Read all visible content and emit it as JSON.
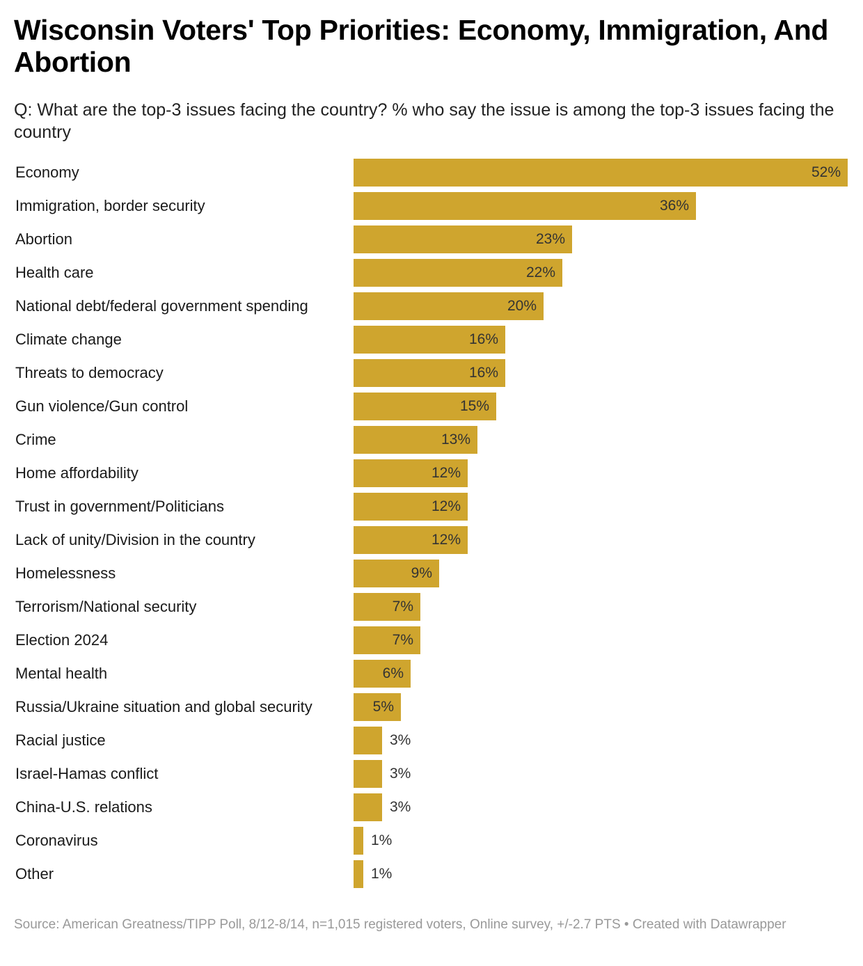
{
  "header": {
    "title": "Wisconsin Voters' Top Priorities: Economy, Immigration, And Abortion",
    "subtitle": "Q: What are the top-3 issues facing the country? % who say the issue is among the top-3 issues facing the country"
  },
  "footer": {
    "source": "Source: American Greatness/TIPP Poll, 8/12-8/14, n=1,015 registered voters, Online survey, +/-2.7 PTS • Created with Datawrapper"
  },
  "colors": {
    "bar": "#cfa52e",
    "label_inside": "#333333",
    "label_outside": "#333333"
  },
  "chart_data": {
    "type": "bar",
    "orientation": "horizontal",
    "title": "Wisconsin Voters' Top Priorities: Economy, Immigration, And Abortion",
    "xlabel": "",
    "ylabel": "",
    "value_suffix": "%",
    "xlim": [
      0,
      52
    ],
    "categories": [
      "Economy",
      "Immigration, border security",
      "Abortion",
      "Health care",
      "National debt/federal government spending",
      "Climate change",
      "Threats to democracy",
      "Gun violence/Gun control",
      "Crime",
      "Home affordability",
      "Trust in government/Politicians",
      "Lack of unity/Division in the country",
      "Homelessness",
      "Terrorism/National security",
      "Election 2024",
      "Mental health",
      "Russia/Ukraine situation and global security",
      "Racial justice",
      "Israel-Hamas conflict",
      "China-U.S. relations",
      "Coronavirus",
      "Other"
    ],
    "values": [
      52,
      36,
      23,
      22,
      20,
      16,
      16,
      15,
      13,
      12,
      12,
      12,
      9,
      7,
      7,
      6,
      5,
      3,
      3,
      3,
      1,
      1
    ]
  }
}
